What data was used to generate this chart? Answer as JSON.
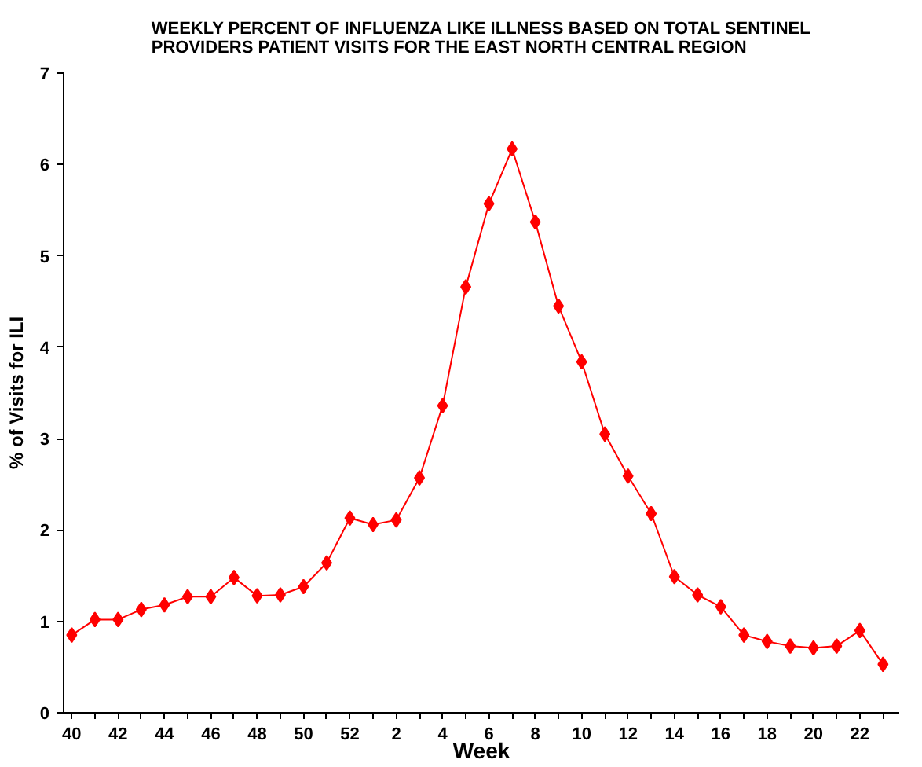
{
  "chart_data": {
    "type": "line",
    "title": "WEEKLY PERCENT OF INFLUENZA LIKE ILLNESS BASED ON TOTAL SENTINEL\nPROVIDERS PATIENT VISITS FOR THE EAST NORTH CENTRAL  REGION",
    "xlabel": "Week",
    "ylabel": "% of Visits for ILI",
    "categories": [
      "40",
      null,
      "42",
      null,
      "44",
      null,
      "46",
      null,
      "48",
      null,
      "50",
      null,
      "52",
      null,
      "2",
      null,
      "4",
      null,
      "6",
      null,
      "8",
      null,
      "10",
      null,
      "12",
      null,
      "14",
      null,
      "16",
      null,
      "18",
      null,
      "20",
      null,
      "22",
      null
    ],
    "series": [
      {
        "color": "#ff0000",
        "values": [
          0.85,
          1.02,
          1.02,
          1.13,
          1.18,
          1.27,
          1.27,
          1.48,
          1.28,
          1.29,
          1.38,
          1.64,
          2.13,
          2.06,
          2.11,
          2.57,
          3.36,
          4.66,
          5.57,
          6.17,
          5.37,
          4.45,
          3.84,
          3.05,
          2.59,
          2.18,
          1.49,
          1.29,
          1.16,
          0.85,
          0.78,
          0.73,
          0.71,
          0.73,
          0.9,
          0.53
        ]
      }
    ],
    "ylim": [
      0,
      7
    ],
    "yticks": [
      0,
      1,
      2,
      3,
      4,
      5,
      6,
      7
    ],
    "grid": false,
    "marker": "diamond",
    "line_style": "solid"
  }
}
